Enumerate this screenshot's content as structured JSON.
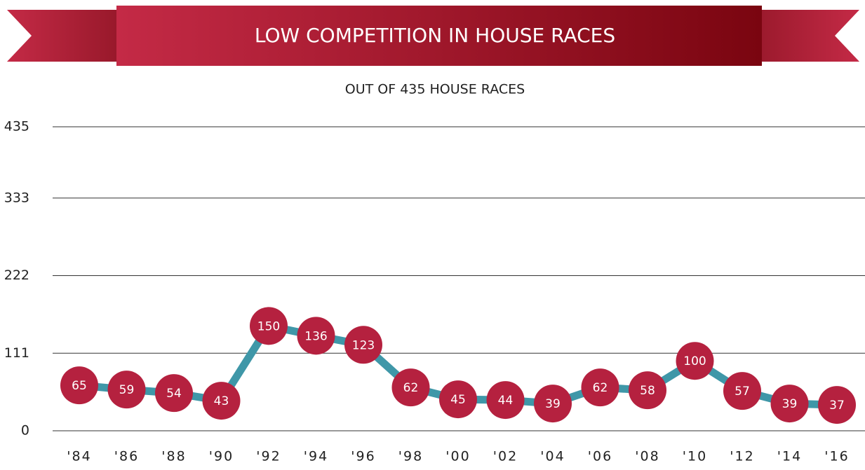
{
  "chart_data": {
    "type": "line",
    "title": "LOW COMPETITION IN HOUSE RACES",
    "subtitle": "OUT OF 435 HOUSE RACES",
    "categories": [
      "'84",
      "'86",
      "'88",
      "'90",
      "'92",
      "'94",
      "'96",
      "'98",
      "'00",
      "'02",
      "'04",
      "'06",
      "'08",
      "'10",
      "'12",
      "'14",
      "'16"
    ],
    "series": [
      {
        "color": "#3f97a8",
        "marker_color": "#b5213f",
        "values": [
          65,
          59,
          54,
          43,
          150,
          136,
          123,
          62,
          45,
          44,
          39,
          62,
          58,
          100,
          57,
          39,
          37
        ]
      }
    ],
    "ylim": [
      0,
      435
    ],
    "yticks": [
      0,
      111,
      222,
      333,
      435
    ],
    "grid": true
  }
}
